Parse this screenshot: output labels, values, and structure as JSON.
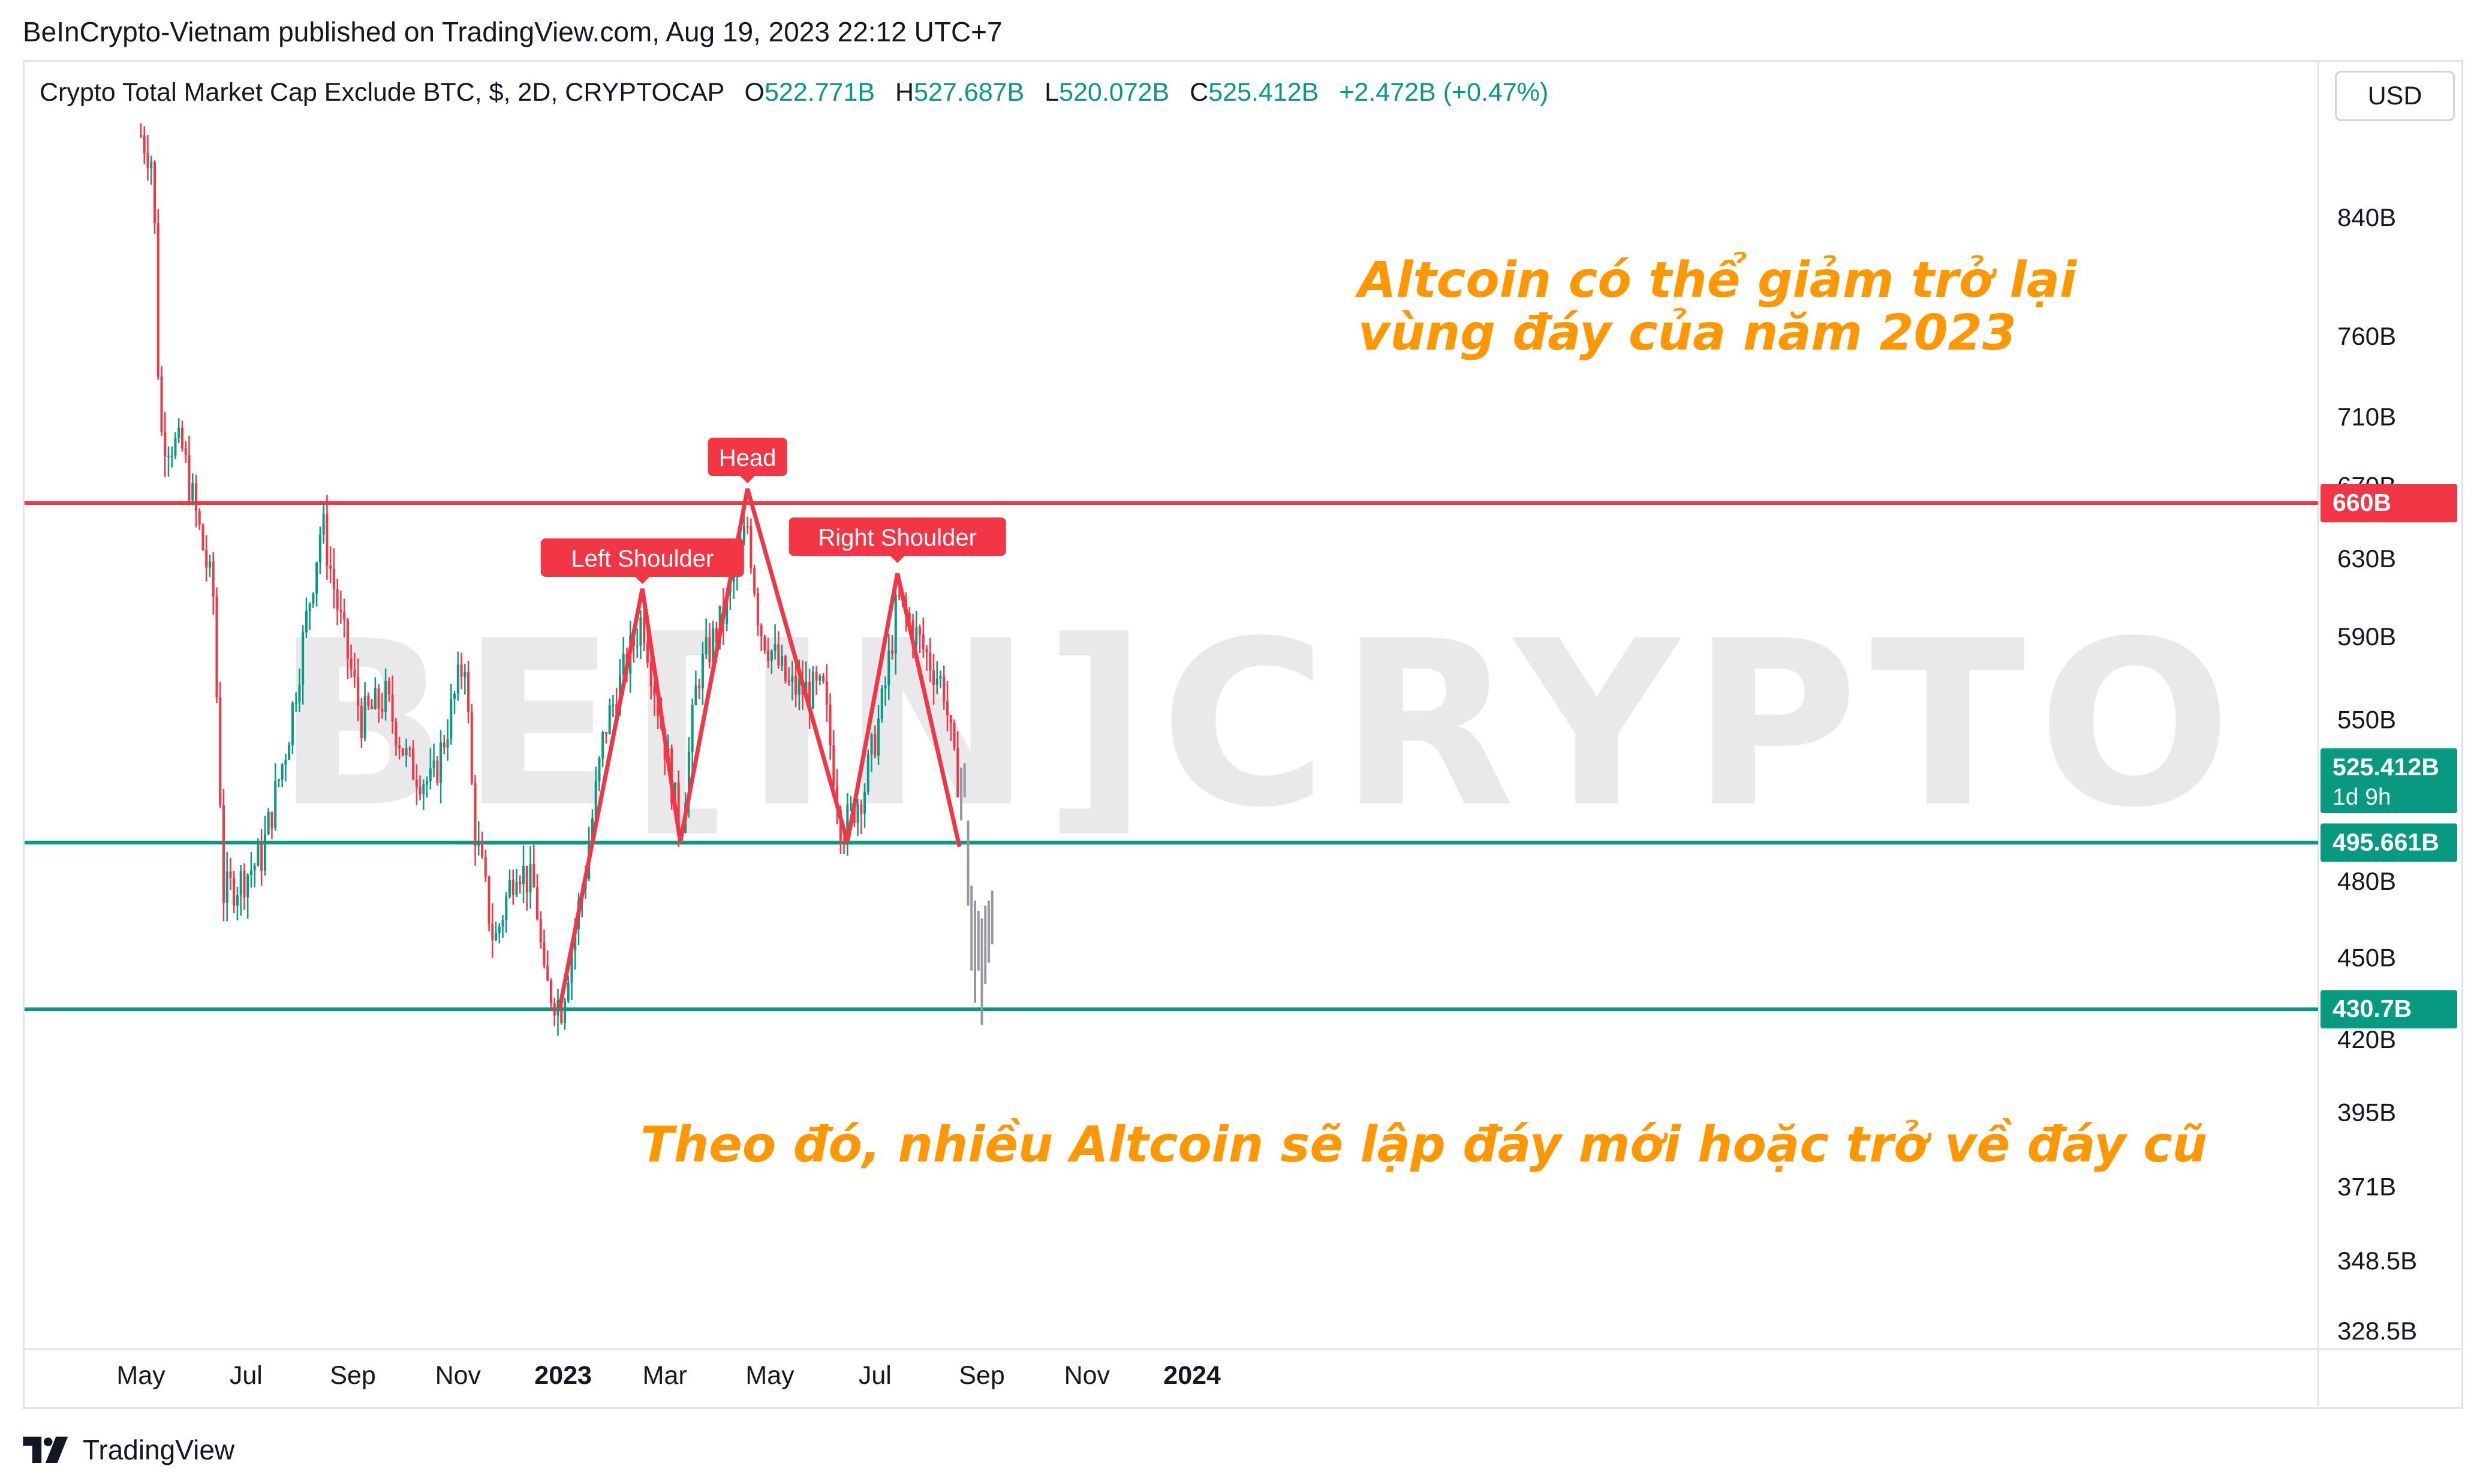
{
  "header": {
    "published": "BeInCrypto-Vietnam published on TradingView.com, Aug 19, 2023 22:12 UTC+7"
  },
  "legend": {
    "title": "Crypto Total Market Cap Exclude BTC, $, 2D, CRYPTOCAP",
    "o_label": "O",
    "o_value": "522.771B",
    "h_label": "H",
    "h_value": "527.687B",
    "l_label": "L",
    "l_value": "520.072B",
    "c_label": "C",
    "c_value": "525.412B",
    "change": "+2.472B (+0.47%)"
  },
  "toolbar": {
    "currency": "USD"
  },
  "footer": {
    "brand": "TradingView"
  },
  "watermark": "BE[IN]CRYPTO",
  "colors": {
    "up": "#089981",
    "down": "#f23645",
    "pattern": "#f23645",
    "resistance": "#f23645",
    "support": "#089981",
    "projection": "#9598a1",
    "annotation": "#ff9800",
    "watermark": "#e9e9ec"
  },
  "chart_data": {
    "type": "candlestick",
    "interval": "2D",
    "scale": "log",
    "x_axis_ticks": [
      "May",
      "Jul",
      "Sep",
      "Nov",
      "2023",
      "Mar",
      "May",
      "Jul",
      "Sep",
      "Nov",
      "2024"
    ],
    "y_axis_ticks": [
      "840B",
      "760B",
      "710B",
      "670B",
      "630B",
      "590B",
      "550B",
      "480B",
      "450B",
      "420B",
      "395B",
      "371B",
      "348.5B",
      "328.5B"
    ],
    "y_range": [
      320,
      930
    ],
    "price_badges": [
      {
        "label": "660B",
        "value": 660,
        "color": "#f23645"
      },
      {
        "label": "525.412B",
        "sub": "1d 9h",
        "value": 525.412,
        "color": "#089981"
      },
      {
        "label": "495.661B",
        "value": 495.661,
        "color": "#089981"
      },
      {
        "label": "430.7B",
        "value": 430.7,
        "color": "#089981"
      }
    ],
    "horizontal_lines": [
      {
        "name": "resistance",
        "value": 660,
        "color": "#f23645"
      },
      {
        "name": "neckline",
        "value": 495.661,
        "color": "#089981"
      },
      {
        "name": "support",
        "value": 430.7,
        "color": "#089981"
      }
    ],
    "pattern": {
      "name": "head-and-shoulders",
      "labels": [
        "Left Shoulder",
        "Head",
        "Right Shoulder"
      ],
      "points": [
        {
          "date": "2022-12-30",
          "value": 431
        },
        {
          "date": "2023-02-16",
          "value": 614
        },
        {
          "date": "2023-03-10",
          "value": 496
        },
        {
          "date": "2023-04-18",
          "value": 668
        },
        {
          "date": "2023-06-15",
          "value": 496
        },
        {
          "date": "2023-07-14",
          "value": 622
        },
        {
          "date": "2023-08-19",
          "value": 494
        }
      ]
    },
    "annotations": [
      "Altcoin có thể giảm trở lại",
      "vùng đáy của năm 2023",
      "Theo đó, nhiều Altcoin sẽ lập đáy mới hoặc trở về đáy cũ"
    ]
  }
}
